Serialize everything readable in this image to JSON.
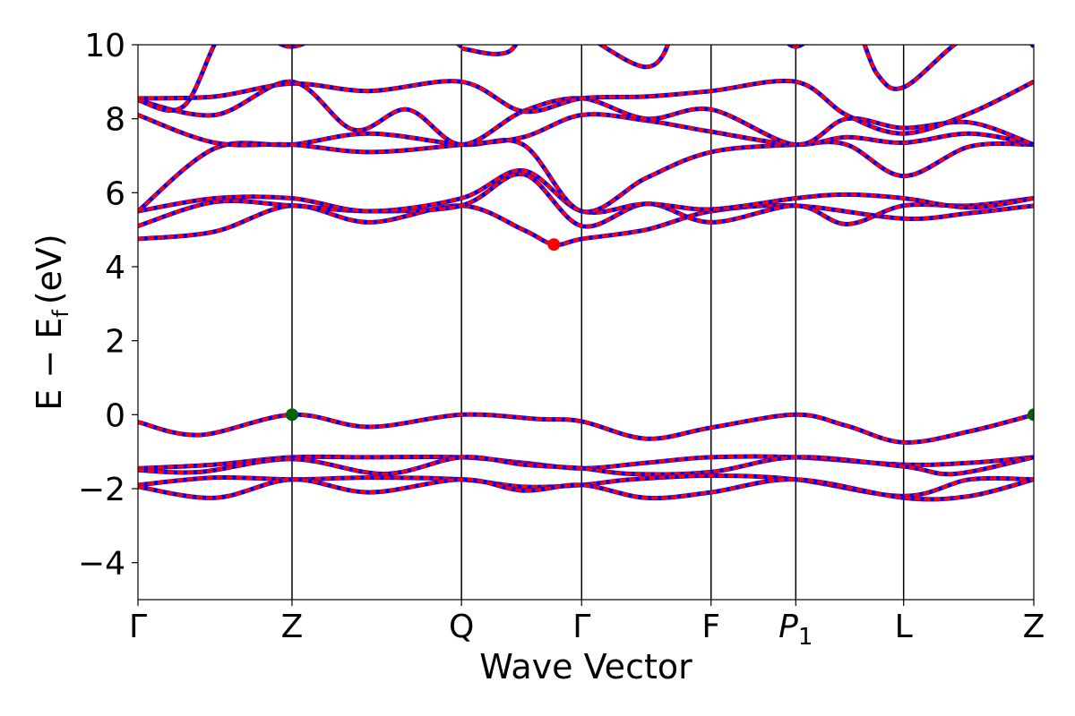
{
  "chart_data": {
    "type": "line",
    "title": "",
    "xlabel": "Wave Vector",
    "ylabel": "E − E",
    "ylabel_sub": "f",
    "ylabel_unit": "(eV)",
    "ylim": [
      -5,
      10
    ],
    "xlim": [
      0,
      5.815
    ],
    "yticks": [
      -4,
      -2,
      0,
      2,
      4,
      6,
      8,
      10
    ],
    "ytick_labels": [
      "−4",
      "−2",
      "0",
      "2",
      "4",
      "6",
      "8",
      "10"
    ],
    "kpoints": [
      {
        "label": "Γ",
        "x": 0.0
      },
      {
        "label": "Z",
        "x": 1.0
      },
      {
        "label": "Q",
        "x": 2.1
      },
      {
        "label": "Γ",
        "x": 2.88
      },
      {
        "label": "F",
        "x": 3.72
      },
      {
        "label": "P",
        "sub": "1",
        "italic": true,
        "x": 4.27
      },
      {
        "label": "L",
        "x": 4.97
      },
      {
        "label": "Z",
        "x": 5.815
      }
    ],
    "grid": false,
    "legend": "none",
    "colors": {
      "band": "#ff0000",
      "band_overlay": "#0000ff",
      "vbm": "#006400",
      "cbm": "#ff0000",
      "kline": "#000000"
    },
    "markers": [
      {
        "name": "VBM",
        "x": 1.0,
        "y": 0.0,
        "color": "#006400"
      },
      {
        "name": "VBM",
        "x": 5.815,
        "y": 0.0,
        "color": "#006400"
      },
      {
        "name": "CBM",
        "x": 2.7,
        "y": 4.6,
        "color": "#ff0000"
      }
    ],
    "series": [
      {
        "x": [
          0,
          0.4,
          1.0,
          1.5,
          2.1,
          2.6,
          2.88,
          3.3,
          3.72,
          4.27,
          4.6,
          4.97,
          5.4,
          5.815
        ],
        "y": [
          -0.2,
          -0.55,
          0.0,
          -0.33,
          0.0,
          -0.12,
          -0.18,
          -0.65,
          -0.35,
          0.0,
          -0.3,
          -0.75,
          -0.45,
          0.0
        ]
      },
      {
        "x": [
          0,
          0.5,
          1.0,
          1.5,
          2.1,
          2.5,
          2.88,
          3.3,
          3.72,
          4.27,
          4.97,
          5.4,
          5.815
        ],
        "y": [
          -1.45,
          -1.35,
          -1.15,
          -1.15,
          -1.15,
          -1.3,
          -1.45,
          -1.3,
          -1.15,
          -1.15,
          -1.35,
          -1.3,
          -1.15
        ]
      },
      {
        "x": [
          0,
          0.4,
          1.0,
          1.6,
          2.1,
          2.5,
          2.88,
          3.2,
          3.72,
          4.27,
          4.97,
          5.3,
          5.815
        ],
        "y": [
          -1.5,
          -1.55,
          -1.2,
          -1.6,
          -1.15,
          -1.35,
          -1.45,
          -1.6,
          -1.55,
          -1.15,
          -1.4,
          -1.6,
          -1.15
        ]
      },
      {
        "x": [
          0,
          0.5,
          1.0,
          1.5,
          2.1,
          2.5,
          2.88,
          3.2,
          3.72,
          4.27,
          4.97,
          5.4,
          5.815
        ],
        "y": [
          -1.9,
          -1.7,
          -1.75,
          -1.7,
          -1.75,
          -1.95,
          -1.9,
          -1.75,
          -1.65,
          -1.75,
          -2.2,
          -1.75,
          -1.75
        ]
      },
      {
        "x": [
          0,
          0.5,
          1.0,
          1.5,
          2.1,
          2.5,
          2.88,
          3.3,
          3.72,
          4.27,
          4.97,
          5.4,
          5.815
        ],
        "y": [
          -1.95,
          -2.25,
          -1.75,
          -2.1,
          -1.75,
          -2.05,
          -1.9,
          -2.25,
          -2.1,
          -1.75,
          -2.25,
          -2.2,
          -1.75
        ]
      },
      {
        "x": [
          0,
          0.5,
          1.0,
          1.5,
          2.1,
          2.5,
          2.7,
          2.88,
          3.3,
          3.72,
          4.27,
          4.97,
          5.4,
          5.815
        ],
        "y": [
          4.75,
          4.95,
          5.65,
          5.2,
          5.65,
          5.0,
          4.6,
          4.75,
          5.0,
          5.5,
          5.65,
          5.3,
          5.45,
          5.65
        ]
      },
      {
        "x": [
          0,
          0.5,
          1.0,
          1.5,
          2.1,
          2.5,
          2.88,
          3.3,
          3.72,
          4.27,
          4.6,
          4.97,
          5.4,
          5.815
        ],
        "y": [
          5.1,
          5.75,
          5.65,
          5.5,
          5.65,
          6.5,
          5.1,
          5.7,
          5.2,
          5.65,
          5.15,
          5.65,
          5.65,
          5.85
        ]
      },
      {
        "x": [
          0,
          0.5,
          1.0,
          1.5,
          2.1,
          2.5,
          2.88,
          3.3,
          3.72,
          4.27,
          4.6,
          4.97,
          5.4,
          5.815
        ],
        "y": [
          5.5,
          5.85,
          5.85,
          5.5,
          5.85,
          6.6,
          5.5,
          5.7,
          5.55,
          5.85,
          5.95,
          5.85,
          5.6,
          5.85
        ]
      },
      {
        "x": [
          0,
          0.5,
          1.0,
          1.5,
          2.1,
          2.5,
          2.88,
          3.3,
          3.72,
          4.27,
          4.6,
          4.97,
          5.4,
          5.815
        ],
        "y": [
          5.5,
          7.2,
          7.3,
          7.6,
          7.3,
          7.3,
          5.5,
          6.4,
          7.1,
          7.3,
          7.3,
          6.45,
          7.25,
          7.3
        ]
      },
      {
        "x": [
          0,
          0.5,
          1.0,
          1.5,
          2.1,
          2.5,
          2.88,
          3.3,
          3.72,
          4.27,
          4.6,
          4.97,
          5.4,
          5.815
        ],
        "y": [
          8.1,
          7.35,
          7.3,
          7.1,
          7.3,
          7.5,
          8.1,
          7.95,
          7.65,
          7.3,
          7.5,
          7.35,
          7.6,
          7.3
        ]
      },
      {
        "x": [
          0,
          0.5,
          1.0,
          1.4,
          1.75,
          2.1,
          2.5,
          2.88,
          3.3,
          3.72,
          4.27,
          4.6,
          4.97,
          5.4,
          5.815
        ],
        "y": [
          8.5,
          8.1,
          9.0,
          7.7,
          8.25,
          7.3,
          8.2,
          8.55,
          8.0,
          8.25,
          7.3,
          8.0,
          7.75,
          7.9,
          7.3
        ]
      },
      {
        "x": [
          0,
          0.5,
          1.0,
          1.5,
          2.1,
          2.5,
          2.88,
          3.3,
          3.72,
          4.27,
          4.6,
          4.97,
          5.4,
          5.815
        ],
        "y": [
          8.55,
          8.6,
          8.95,
          8.75,
          9.0,
          8.2,
          8.55,
          8.6,
          8.75,
          9.0,
          8.1,
          7.6,
          8.15,
          9.0
        ]
      },
      {
        "x": [
          0,
          0.3,
          0.6,
          1.0,
          1.4,
          1.8,
          2.1
        ],
        "y": [
          8.5,
          8.35,
          10.6,
          9.95,
          10.8,
          10.8,
          9.95
        ]
      },
      {
        "x": [
          2.1,
          2.4,
          2.65,
          3.3,
          3.5
        ],
        "y": [
          9.9,
          9.8,
          10.8,
          9.4,
          10.8
        ]
      },
      {
        "x": [
          4.1,
          4.27,
          4.6,
          4.8,
          4.97,
          5.3,
          5.6,
          5.815
        ],
        "y": [
          10.8,
          9.95,
          10.8,
          9.2,
          8.85,
          10.0,
          10.8,
          9.95
        ]
      }
    ]
  }
}
